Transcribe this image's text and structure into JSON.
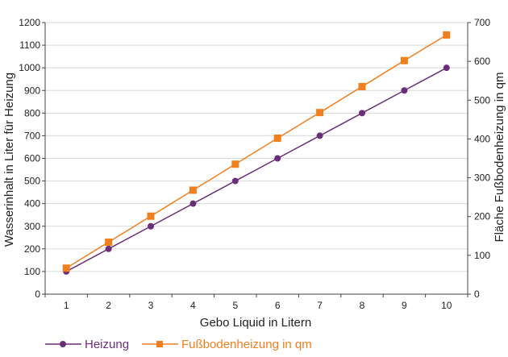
{
  "chart_data": {
    "type": "line",
    "x": [
      1,
      2,
      3,
      4,
      5,
      6,
      7,
      8,
      9,
      10
    ],
    "xlabel": "Gebo Liquid in Litern",
    "ylabel_left": "Wasserinhalt in Liter für Heizung",
    "ylabel_right": "Fläche Fußbodenheizung in qm",
    "ylim_left": [
      0,
      1200
    ],
    "ylim_right": [
      0,
      700
    ],
    "yticks_left": [
      0,
      100,
      200,
      300,
      400,
      500,
      600,
      700,
      800,
      900,
      1000,
      1100,
      1200
    ],
    "yticks_right": [
      0,
      100,
      200,
      300,
      400,
      500,
      600,
      700
    ],
    "grid": "horizontal",
    "legend_position": "bottom",
    "series": [
      {
        "name": "Heizung",
        "axis": "left",
        "color": "#6b2f7a",
        "marker": "circle",
        "values": [
          100,
          200,
          300,
          400,
          500,
          600,
          700,
          800,
          900,
          1000
        ]
      },
      {
        "name": "Fußbodenheizung in qm",
        "axis": "right",
        "color": "#f07f1e",
        "marker": "square",
        "values": [
          67,
          134,
          201,
          268,
          335,
          402,
          468,
          535,
          602,
          668
        ]
      }
    ]
  }
}
